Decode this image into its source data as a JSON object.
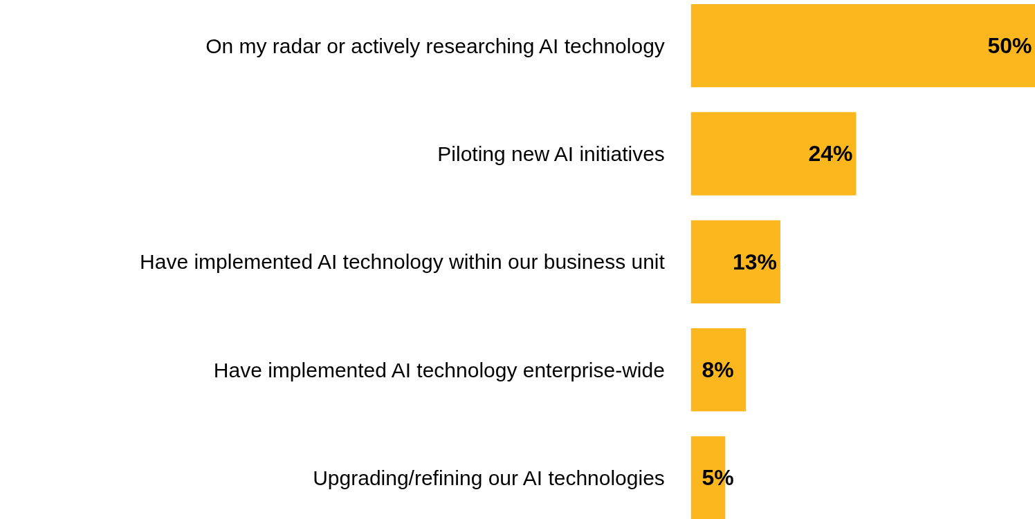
{
  "chart_data": {
    "type": "bar",
    "orientation": "horizontal",
    "categories": [
      "On my radar or actively researching AI technology",
      "Piloting new AI initiatives",
      "Have implemented AI technology within our business unit",
      "Have implemented AI technology enterprise-wide",
      "Upgrading/refining our AI technologies"
    ],
    "values": [
      50,
      24,
      13,
      8,
      5
    ],
    "value_labels": [
      "50%",
      "24%",
      "13%",
      "8%",
      "5%"
    ],
    "color": "#fcb71f"
  }
}
